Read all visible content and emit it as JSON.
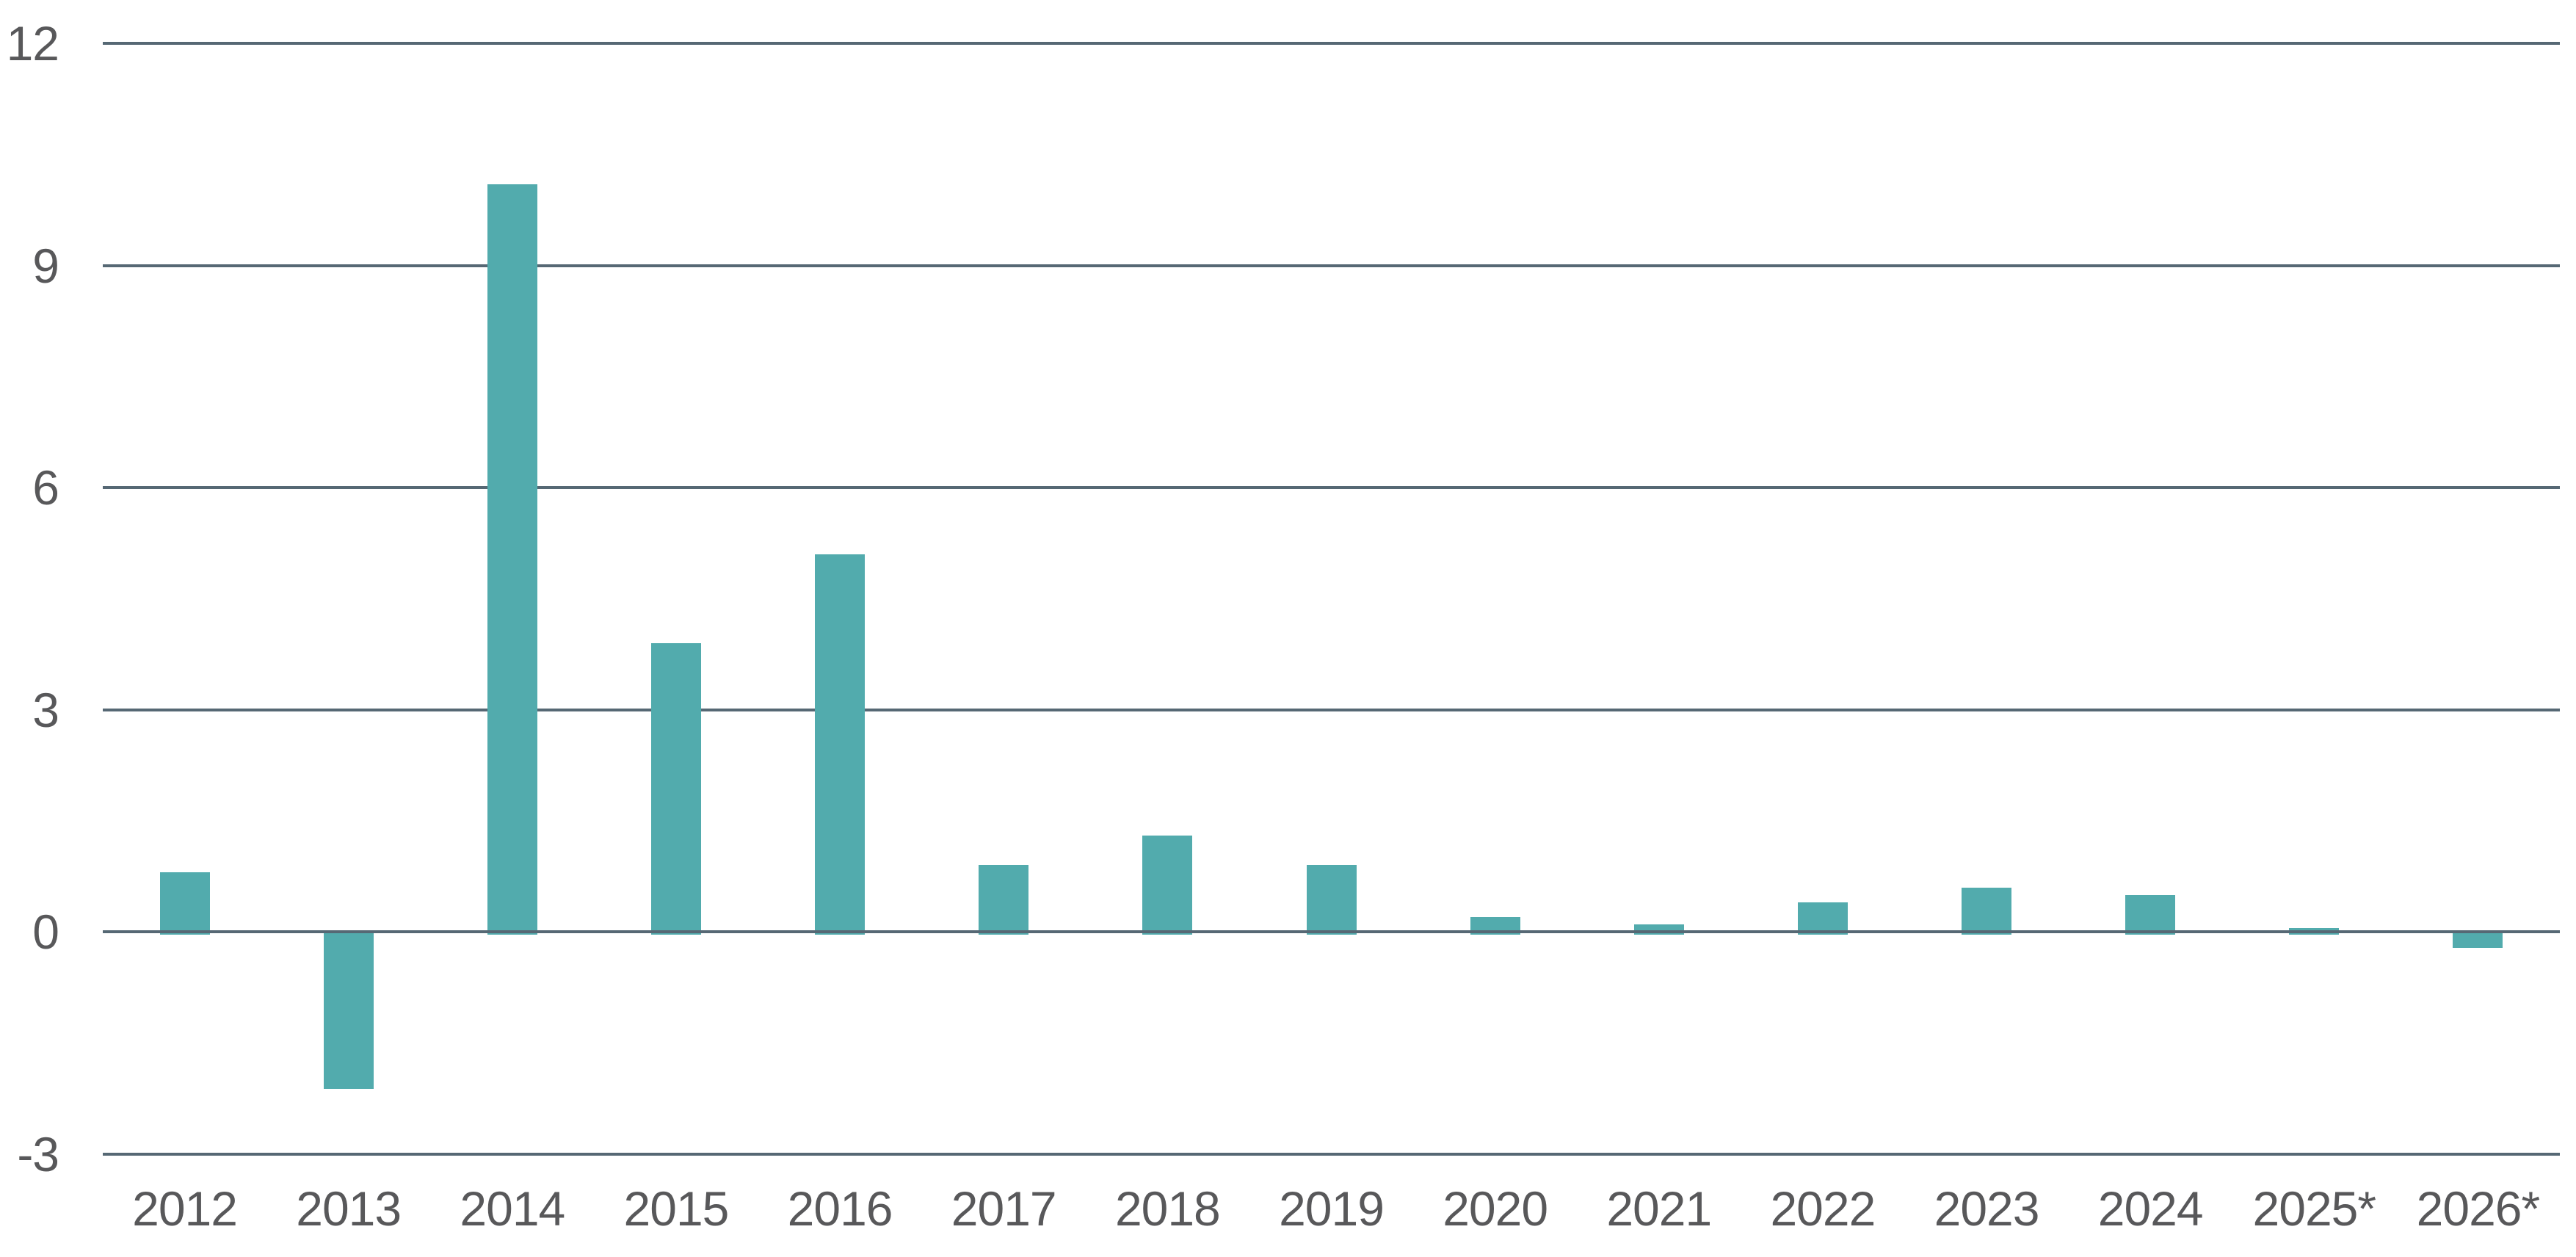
{
  "chart_data": {
    "type": "bar",
    "title": "",
    "xlabel": "",
    "ylabel": "",
    "categories": [
      "2012",
      "2013",
      "2014",
      "2015",
      "2016",
      "2017",
      "2018",
      "2019",
      "2020",
      "2021",
      "2022",
      "2023",
      "2024",
      "2025*",
      "2026*"
    ],
    "values": [
      0.8,
      -2.1,
      10.1,
      3.9,
      5.1,
      0.9,
      1.3,
      0.9,
      0.2,
      0.1,
      0.4,
      0.6,
      0.5,
      0.05,
      -0.2
    ],
    "yticks": [
      "12",
      "9",
      "6",
      "3",
      "0",
      "-3"
    ],
    "ytick_values": [
      12,
      9,
      6,
      3,
      0,
      -3
    ],
    "ylim": [
      -3,
      12
    ],
    "grid": true,
    "legend_position": "none",
    "colors": {
      "bar": "#52abad",
      "gridline": "#566874",
      "label": "#58585a",
      "background": "#ffffff"
    }
  }
}
